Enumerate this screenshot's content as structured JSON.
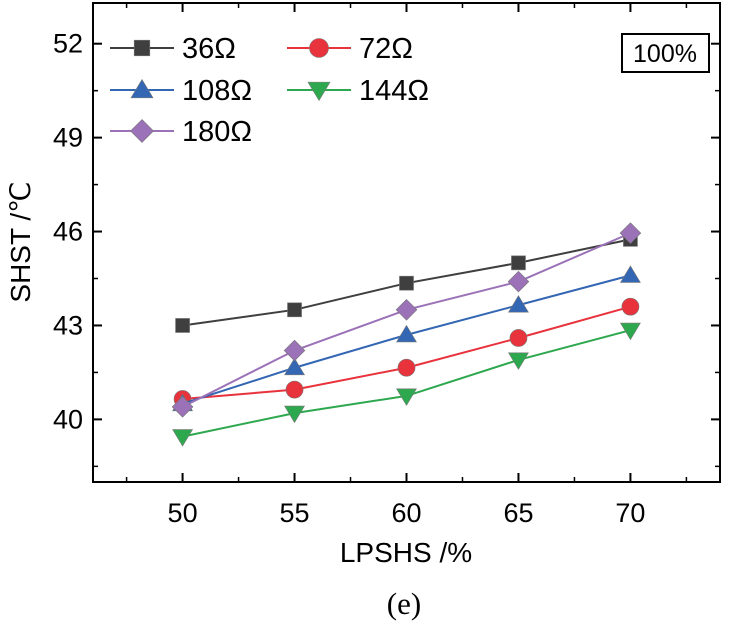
{
  "chart_data": {
    "type": "line",
    "title": "",
    "xlabel": "LPSHS /%",
    "ylabel": "SHST /℃",
    "x": [
      50,
      55,
      60,
      65,
      70
    ],
    "x_ticks": [
      "50",
      "55",
      "60",
      "65",
      "70"
    ],
    "y_ticks": [
      "40",
      "43",
      "46",
      "49",
      "52"
    ],
    "xlim": [
      46,
      74
    ],
    "ylim": [
      38,
      53.3
    ],
    "grid": false,
    "legend_position": "top-left",
    "annotation": "100%",
    "caption": "(e)",
    "series": [
      {
        "name": "36Ω",
        "color": "#3f3f3f",
        "marker": "square",
        "values": [
          43.0,
          43.5,
          44.35,
          45.0,
          45.75
        ]
      },
      {
        "name": "72Ω",
        "color": "#e8323c",
        "marker": "circle",
        "values": [
          40.65,
          40.95,
          41.65,
          42.6,
          43.6
        ]
      },
      {
        "name": "108Ω",
        "color": "#3366b3",
        "marker": "triangle-up",
        "values": [
          40.5,
          41.65,
          42.7,
          43.65,
          44.6
        ]
      },
      {
        "name": "144Ω",
        "color": "#2ea84e",
        "marker": "triangle-down",
        "values": [
          39.45,
          40.2,
          40.75,
          41.9,
          42.85
        ]
      },
      {
        "name": "180Ω",
        "color": "#9b72b8",
        "marker": "diamond",
        "values": [
          40.4,
          42.2,
          43.5,
          44.4,
          45.95
        ]
      }
    ]
  }
}
